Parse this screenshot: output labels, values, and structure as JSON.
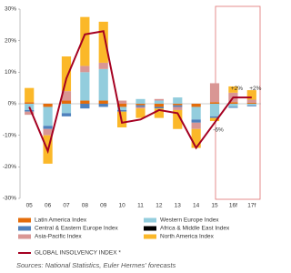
{
  "chart_data": {
    "type": "bar",
    "categories": [
      "05",
      "06",
      "07",
      "08",
      "09",
      "10",
      "11",
      "12",
      "13",
      "14",
      "15",
      "16f",
      "17f"
    ],
    "series": [
      {
        "name": "Latin America Index",
        "color": "#e46c0a",
        "values": [
          0.5,
          -1,
          1,
          1,
          1,
          -1,
          -0.5,
          -1,
          -0.5,
          -1,
          0.5,
          0.5,
          0.3
        ]
      },
      {
        "name": "Western Europe Index",
        "color": "#93cddd",
        "values": [
          -2,
          -6,
          -3,
          9,
          10,
          -1,
          1.5,
          1,
          2,
          -4,
          -4,
          -1,
          -0.5
        ]
      },
      {
        "name": "Central & Eastern Europe Index",
        "color": "#4f81bd",
        "values": [
          -0.5,
          -1,
          -1,
          -1.5,
          -1,
          -0.5,
          -0.5,
          -0.5,
          -0.5,
          -1,
          -0.5,
          -0.3,
          -0.3
        ]
      },
      {
        "name": "Africa & Middle East Index",
        "color": "#000000",
        "values": [
          0,
          0,
          0,
          0,
          0,
          0,
          0,
          0,
          0,
          0,
          0,
          0,
          0
        ]
      },
      {
        "name": "Asia-Pacific Index",
        "color": "#d99694",
        "values": [
          -1,
          -2,
          3,
          2,
          2,
          1,
          -0.5,
          0.5,
          -1,
          -2,
          6,
          3,
          1
        ]
      },
      {
        "name": "North America Index",
        "color": "#fbb829",
        "values": [
          4.5,
          -9,
          11,
          15.5,
          13,
          -5,
          -3,
          -3,
          -6,
          -6,
          -1,
          2,
          3
        ]
      },
      {
        "name": "GLOBAL INSOLVENCY INDEX *",
        "color": "#a50021",
        "type": "line",
        "values": [
          -1,
          -15,
          8,
          22,
          23,
          -6,
          -5,
          -2,
          -3,
          -14,
          -6,
          2,
          2
        ],
        "value_labels": [
          null,
          null,
          null,
          null,
          null,
          null,
          null,
          null,
          null,
          null,
          "-6%",
          "+2%",
          "+2%"
        ]
      }
    ],
    "ylim": [
      -30,
      30
    ],
    "yticks": [
      {
        "value": -30,
        "label": "-30%"
      },
      {
        "value": -20,
        "label": "-20%"
      },
      {
        "value": -10,
        "label": "-10%"
      },
      {
        "value": 0,
        "label": "0%"
      },
      {
        "value": 10,
        "label": "10%"
      },
      {
        "value": 20,
        "label": "20%"
      },
      {
        "value": 30,
        "label": "30%"
      }
    ],
    "source": "Sources: National Statistics, Euler Hermes' forecasts"
  }
}
